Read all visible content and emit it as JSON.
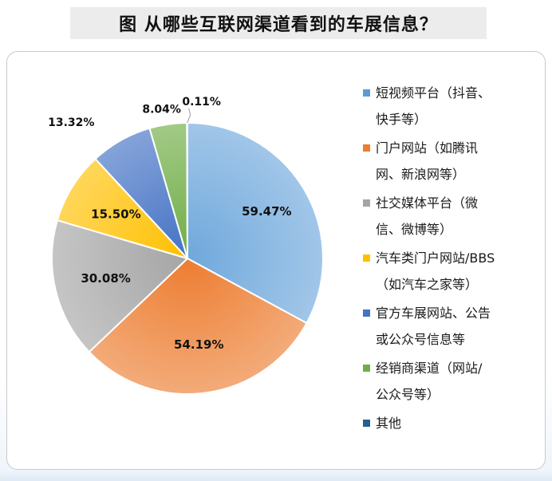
{
  "title": "图  从哪些互联网渠道看到的车展信息？",
  "chart_data": {
    "type": "pie",
    "title": "图  从哪些互联网渠道看到的车展信息？",
    "slices": [
      {
        "name": "短视频平台（抖音、快手等）",
        "value": 59.47,
        "label": "59.47%",
        "color": "#6fa8dc"
      },
      {
        "name": "门户网站（如腾讯网、新浪网等）",
        "value": 54.19,
        "label": "54.19%",
        "color": "#ed7d31"
      },
      {
        "name": "社交媒体平台（微信、微博等）",
        "value": 30.08,
        "label": "30.08%",
        "color": "#a5a5a5"
      },
      {
        "name": "汽车类门户网站/BBS（如汽车之家等）",
        "value": 15.5,
        "label": "15.50%",
        "color": "#ffc000"
      },
      {
        "name": "官方车展网站、公告或公众号信息等",
        "value": 13.32,
        "label": "13.32%",
        "color": "#4472c4"
      },
      {
        "name": "经销商渠道（网站/公众号等）",
        "value": 8.04,
        "label": "8.04%",
        "color": "#70ad47"
      },
      {
        "name": "其他",
        "value": 0.11,
        "label": "0.11%",
        "color": "#255e91"
      }
    ],
    "legend_position": "right"
  },
  "legend": [
    {
      "text": "短视频平台（抖音、\n快手等）",
      "color": "#5b9bd5"
    },
    {
      "text": "门户网站（如腾讯\n网、新浪网等）",
      "color": "#ed7d31"
    },
    {
      "text": "社交媒体平台（微\n信、微博等）",
      "color": "#a5a5a5"
    },
    {
      "text": "汽车类门户网站/BBS\n（如汽车之家等）",
      "color": "#ffc000"
    },
    {
      "text": "官方车展网站、公告\n或公众号信息等",
      "color": "#4472c4"
    },
    {
      "text": "经销商渠道（网站/\n公众号等）",
      "color": "#70ad47"
    },
    {
      "text": "其他",
      "color": "#255e91"
    }
  ]
}
